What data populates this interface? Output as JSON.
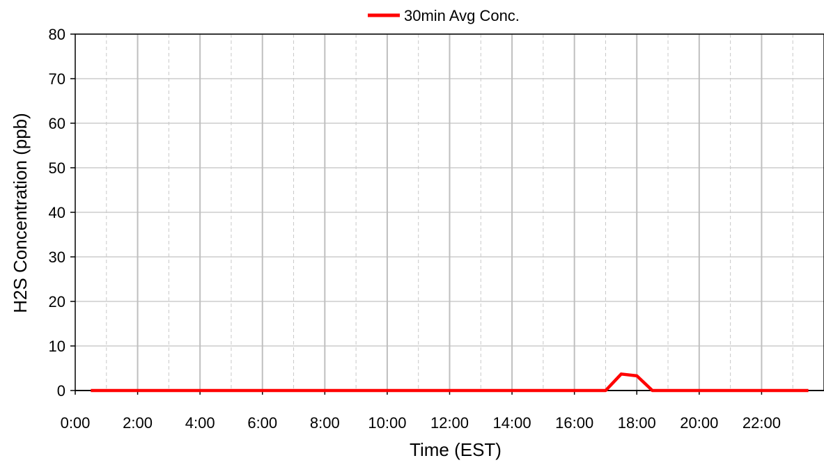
{
  "chart_data": {
    "type": "line",
    "xlabel": "Time (EST)",
    "ylabel": "H2S Concentration (ppb)",
    "xlim": [
      0,
      24
    ],
    "ylim": [
      0,
      80
    ],
    "x_major_step_hours": 2,
    "x_minor_step_hours": 1,
    "y_step": 10,
    "grid": true,
    "legend_position": "top-center",
    "x_ticks": [
      "0:00",
      "2:00",
      "4:00",
      "6:00",
      "8:00",
      "10:00",
      "12:00",
      "14:00",
      "16:00",
      "18:00",
      "20:00",
      "22:00"
    ],
    "y_ticks": [
      "0",
      "10",
      "20",
      "30",
      "40",
      "50",
      "60",
      "70",
      "80"
    ],
    "series": [
      {
        "name": "30min Avg Conc.",
        "color": "#ff0000",
        "x": [
          0.5,
          1.0,
          2.0,
          4.0,
          6.0,
          8.0,
          10.0,
          12.0,
          14.0,
          16.0,
          17.0,
          17.5,
          18.0,
          18.5,
          19.0,
          20.0,
          22.0,
          23.5
        ],
        "y": [
          0,
          0,
          0,
          0,
          0,
          0,
          0,
          0,
          0,
          0,
          0,
          3.7,
          3.3,
          0,
          0,
          0,
          0,
          0
        ]
      }
    ]
  }
}
